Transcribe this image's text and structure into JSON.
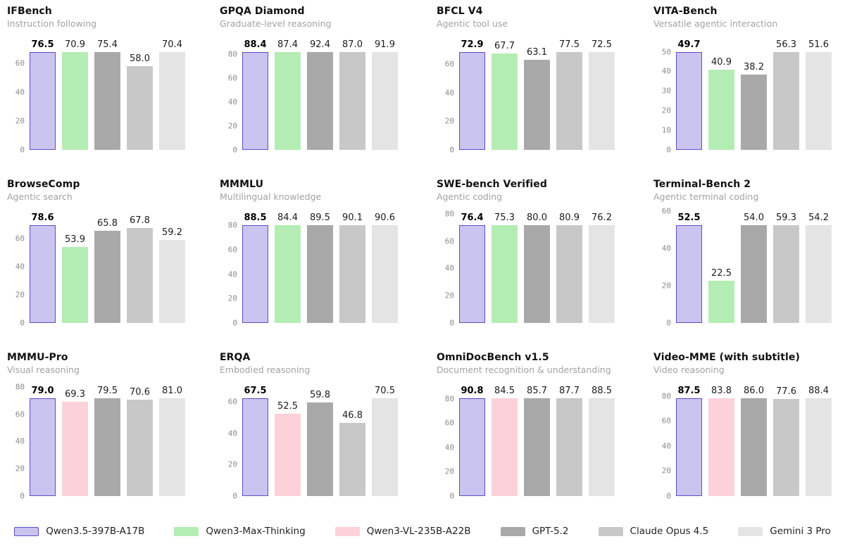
{
  "chart_data": {
    "type": "bar",
    "layout": {
      "grid": false,
      "legend_position": "bottom",
      "columns": 4,
      "rows": 3,
      "bars_scaled_to_max": true
    },
    "legend": [
      {
        "label": "Qwen3.5-397B-A17B",
        "fill": "#c9c4f0",
        "edge": "#5a50c8",
        "highlight": true
      },
      {
        "label": "Qwen3-Max-Thinking",
        "fill": "#b4edb4"
      },
      {
        "label": "Qwen3-VL-235B-A22B",
        "fill": "#fcd1d9"
      },
      {
        "label": "GPT-5.2",
        "fill": "#a9a9a9"
      },
      {
        "label": "Claude Opus 4.5",
        "fill": "#c8c8c8"
      },
      {
        "label": "Gemini 3 Pro",
        "fill": "#e4e4e4"
      }
    ],
    "charts": [
      {
        "title": "IFBench",
        "subtitle": "Instruction following",
        "ticks": [
          0,
          20,
          40,
          60
        ],
        "ylim": [
          0,
          76.5
        ],
        "models": [
          0,
          1,
          3,
          4,
          5
        ],
        "values": [
          76.5,
          70.9,
          75.4,
          58.0,
          70.4
        ]
      },
      {
        "title": "GPQA Diamond",
        "subtitle": "Graduate-level reasoning",
        "ticks": [
          0,
          20,
          40,
          60,
          80
        ],
        "ylim": [
          0,
          92.4
        ],
        "models": [
          0,
          1,
          3,
          4,
          5
        ],
        "values": [
          88.4,
          87.4,
          92.4,
          87.0,
          91.9
        ]
      },
      {
        "title": "BFCL V4",
        "subtitle": "Agentic tool use",
        "ticks": [
          0,
          20,
          40,
          60
        ],
        "ylim": [
          0,
          77.5
        ],
        "models": [
          0,
          1,
          3,
          4,
          5
        ],
        "values": [
          72.9,
          67.7,
          63.1,
          77.5,
          72.5
        ]
      },
      {
        "title": "VITA-Bench",
        "subtitle": "Versatile agentic interaction",
        "ticks": [
          0,
          10,
          20,
          30,
          40,
          50
        ],
        "ylim": [
          0,
          56.3
        ],
        "models": [
          0,
          1,
          3,
          4,
          5
        ],
        "values": [
          49.7,
          40.9,
          38.2,
          56.3,
          51.6
        ]
      },
      {
        "title": "BrowseComp",
        "subtitle": "Agentic search",
        "ticks": [
          0,
          20,
          40,
          60
        ],
        "ylim": [
          0,
          78.6
        ],
        "models": [
          0,
          1,
          3,
          4,
          5
        ],
        "values": [
          78.6,
          53.9,
          65.8,
          67.8,
          59.2
        ]
      },
      {
        "title": "MMMLU",
        "subtitle": "Multilingual knowledge",
        "ticks": [
          0,
          20,
          40,
          60,
          80
        ],
        "ylim": [
          0,
          90.6
        ],
        "models": [
          0,
          1,
          3,
          4,
          5
        ],
        "values": [
          88.5,
          84.4,
          89.5,
          90.1,
          90.6
        ]
      },
      {
        "title": "SWE-bench Verified",
        "subtitle": "Agentic coding",
        "ticks": [
          0,
          20,
          40,
          60,
          80
        ],
        "ylim": [
          0,
          80.9
        ],
        "models": [
          0,
          1,
          3,
          4,
          5
        ],
        "values": [
          76.4,
          75.3,
          80.0,
          80.9,
          76.2
        ]
      },
      {
        "title": "Terminal-Bench 2",
        "subtitle": "Agentic terminal coding",
        "ticks": [
          0,
          20,
          40,
          60
        ],
        "ylim": [
          0,
          59.3
        ],
        "models": [
          0,
          1,
          3,
          4,
          5
        ],
        "values": [
          52.5,
          22.5,
          54.0,
          59.3,
          54.2
        ]
      },
      {
        "title": "MMMU-Pro",
        "subtitle": "Visual reasoning",
        "ticks": [
          0,
          20,
          40,
          60,
          80
        ],
        "ylim": [
          0,
          81.0
        ],
        "models": [
          0,
          2,
          3,
          4,
          5
        ],
        "values": [
          79.0,
          69.3,
          79.5,
          70.6,
          81.0
        ]
      },
      {
        "title": "ERQA",
        "subtitle": "Embodied reasoning",
        "ticks": [
          0,
          20,
          40,
          60
        ],
        "ylim": [
          0,
          70.5
        ],
        "models": [
          0,
          2,
          3,
          4,
          5
        ],
        "values": [
          67.5,
          52.5,
          59.8,
          46.8,
          70.5
        ]
      },
      {
        "title": "OmniDocBench v1.5",
        "subtitle": "Document recognition & understanding",
        "ticks": [
          0,
          20,
          40,
          60,
          80
        ],
        "ylim": [
          0,
          90.8
        ],
        "models": [
          0,
          2,
          3,
          4,
          5
        ],
        "values": [
          90.8,
          84.5,
          85.7,
          87.7,
          88.5
        ]
      },
      {
        "title": "Video-MME (with subtitle)",
        "subtitle": "Video reasoning",
        "ticks": [
          0,
          20,
          40,
          60,
          80
        ],
        "ylim": [
          0,
          88.4
        ],
        "models": [
          0,
          2,
          3,
          4,
          5
        ],
        "values": [
          87.5,
          83.8,
          86.0,
          77.6,
          88.4
        ]
      }
    ]
  }
}
